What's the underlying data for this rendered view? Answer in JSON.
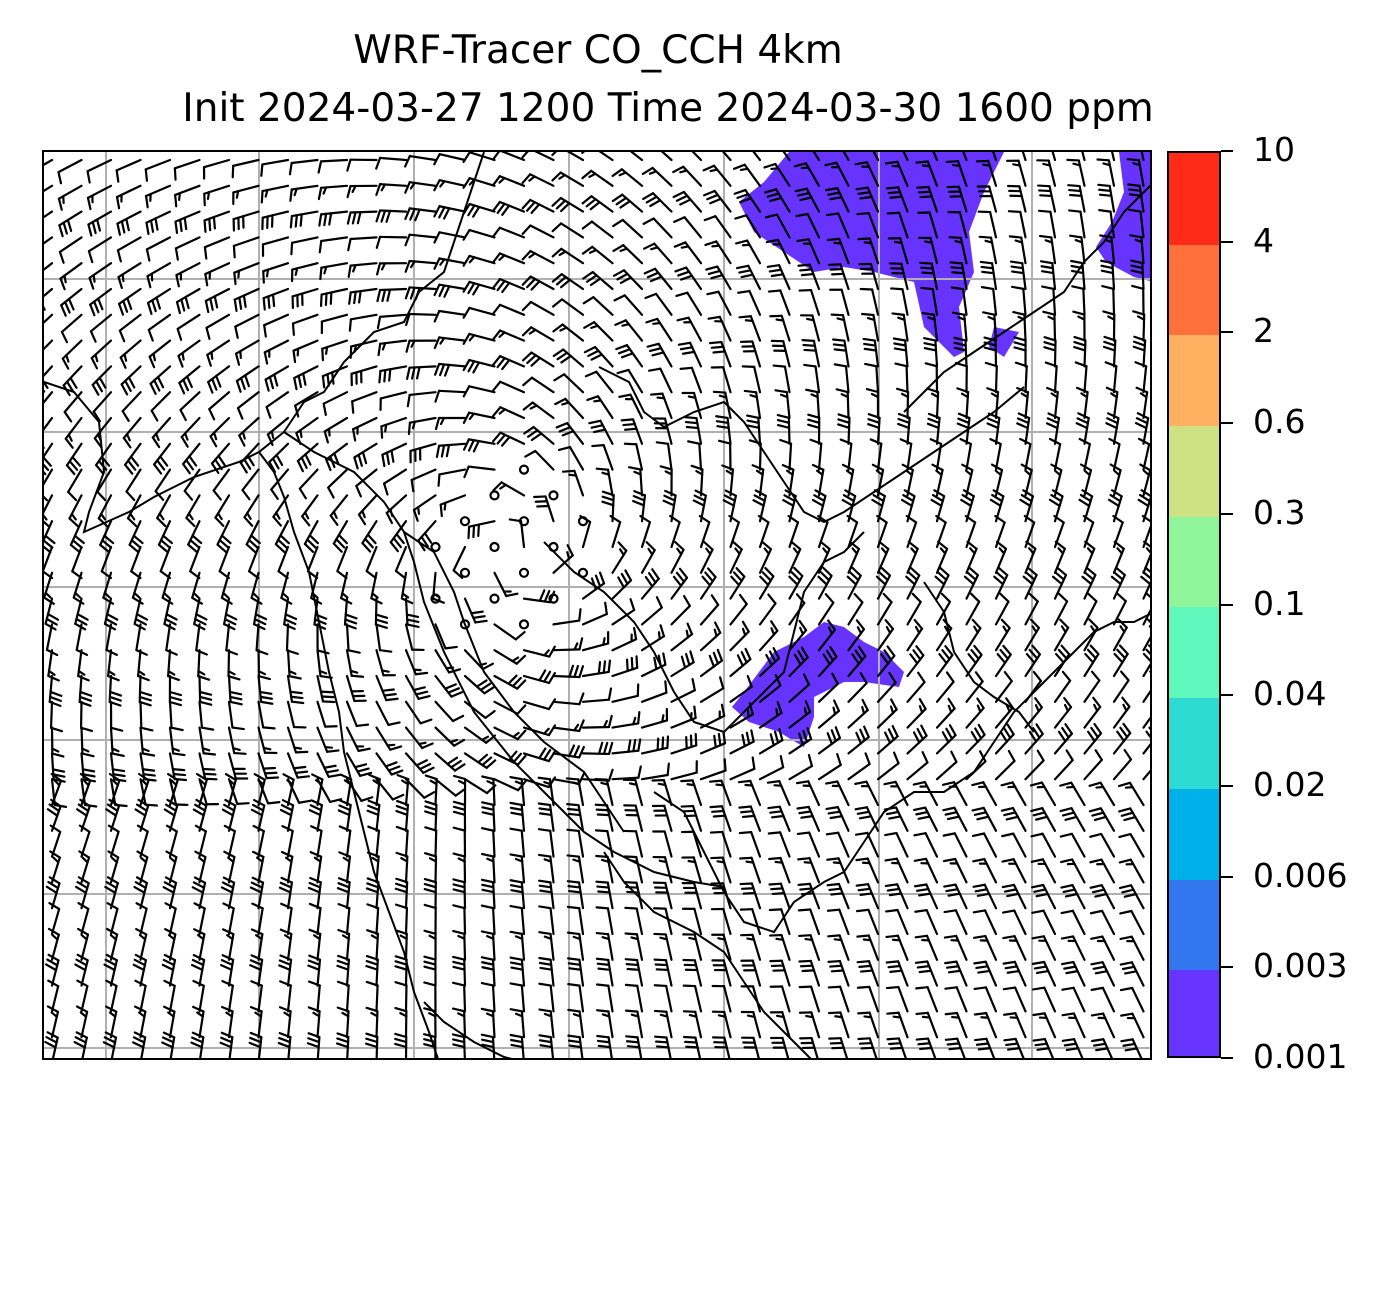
{
  "title": {
    "line1": "WRF-Tracer CO_CCH 4km",
    "line2": "Init 2024-03-27 1200 Time 2024-03-30 1600 ppm"
  },
  "map": {
    "field": "CO_CCH tracer concentration",
    "overlay": "wind barbs",
    "gridlines": true,
    "coastlines": true,
    "colors": {
      "tracer_fill": "#6633ff",
      "gridline": "#b0b0b0",
      "coastline": "#000000",
      "barb": "#000000"
    }
  },
  "colorbar": {
    "orientation": "vertical",
    "position": "right",
    "levels": [
      {
        "label": "0.001",
        "color": "#6633ff"
      },
      {
        "label": "0.003",
        "color": "#3377ee"
      },
      {
        "label": "0.006",
        "color": "#00b0e8"
      },
      {
        "label": "0.02",
        "color": "#2ddbd2"
      },
      {
        "label": "0.04",
        "color": "#5ff7bb"
      },
      {
        "label": "0.1",
        "color": "#8ef59a"
      },
      {
        "label": "0.3",
        "color": "#cfe283"
      },
      {
        "label": "0.6",
        "color": "#ffb060"
      },
      {
        "label": "2",
        "color": "#ff703a"
      },
      {
        "label": "4",
        "color": "#ff2a18"
      },
      {
        "label": "10",
        "color": null
      }
    ]
  }
}
